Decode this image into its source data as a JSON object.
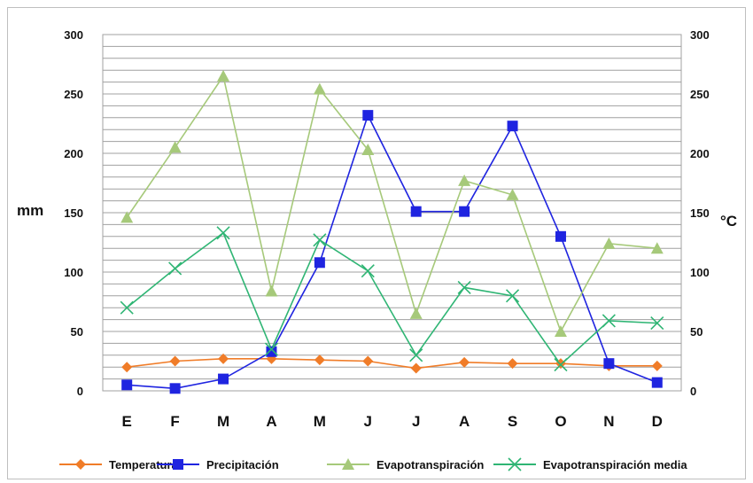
{
  "chart_data": {
    "type": "line",
    "categories": [
      "E",
      "F",
      "M",
      "A",
      "M",
      "J",
      "J",
      "A",
      "S",
      "O",
      "N",
      "D"
    ],
    "y_left": {
      "label": "mm",
      "lim": [
        0,
        300
      ],
      "ticks": [
        0,
        50,
        100,
        150,
        200,
        250,
        300
      ]
    },
    "y_right": {
      "label": "°C",
      "lim": [
        0,
        300
      ],
      "ticks": [
        0,
        50,
        100,
        150,
        200,
        250,
        300
      ]
    },
    "grid": true,
    "legend_position": "bottom",
    "series": [
      {
        "name": "Temperatura",
        "color": "#f07c28",
        "marker": "diamond",
        "values": [
          20,
          25,
          27,
          27,
          26,
          25,
          19,
          24,
          23,
          23,
          21,
          21
        ]
      },
      {
        "name": "Precipitación",
        "color": "#1f24e0",
        "marker": "square",
        "values": [
          5,
          2,
          10,
          33,
          108,
          232,
          151,
          151,
          223,
          130,
          23,
          7
        ]
      },
      {
        "name": "Evapotranspiración",
        "color": "#a6c97a",
        "marker": "triangle",
        "values": [
          146,
          205,
          265,
          84,
          254,
          203,
          65,
          177,
          165,
          50,
          124,
          120
        ]
      },
      {
        "name": "Evapotranspiración media",
        "color": "#2fb574",
        "marker": "x",
        "values": [
          70,
          103,
          133,
          35,
          127,
          101,
          30,
          87,
          80,
          22,
          59,
          57
        ]
      }
    ]
  }
}
